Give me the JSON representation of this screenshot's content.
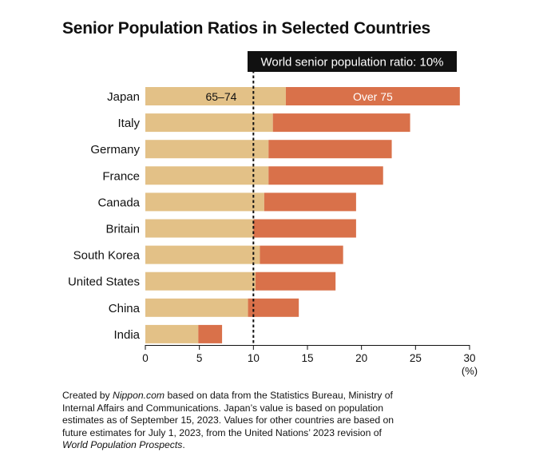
{
  "title": "Senior Population Ratios in Selected Countries",
  "chart_data": {
    "type": "bar",
    "orientation": "horizontal",
    "stacked": true,
    "categories": [
      "Japan",
      "Italy",
      "Germany",
      "France",
      "Canada",
      "Britain",
      "South Korea",
      "United States",
      "China",
      "India"
    ],
    "series": [
      {
        "name": "65–74",
        "color": "#e3c187",
        "values": [
          13.0,
          11.8,
          11.4,
          11.4,
          11.0,
          10.0,
          10.6,
          10.2,
          9.5,
          4.9
        ]
      },
      {
        "name": "Over 75",
        "color": "#d9714a",
        "values": [
          16.1,
          12.7,
          11.4,
          10.6,
          8.5,
          9.5,
          7.7,
          7.4,
          4.7,
          2.2
        ]
      }
    ],
    "x_ticks": [
      "0",
      "5",
      "10",
      "15",
      "20",
      "25",
      "30"
    ],
    "x_unit": "(%)",
    "xlim": [
      0,
      30
    ],
    "reference_line": {
      "value": 10,
      "label": "World senior population ratio: 10%"
    },
    "grid": false
  },
  "note": {
    "parts": [
      {
        "text": "Created by ",
        "italic": false
      },
      {
        "text": "Nippon.com",
        "italic": true
      },
      {
        "text": " based on data from the Statistics Bureau, Ministry of Internal Affairs and Communications. Japan’s value is based on population estimates as of September 15, 2023. Values for other countries are based on future estimates for July 1, 2023, from the United Nations’ 2023 revision of ",
        "italic": false
      },
      {
        "text": "World Population Prospects",
        "italic": true
      },
      {
        "text": ".",
        "italic": false
      }
    ]
  }
}
